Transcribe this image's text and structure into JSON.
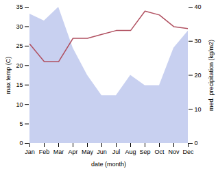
{
  "chart_data": {
    "type": "line",
    "categories": [
      "Jan",
      "Feb",
      "Mar",
      "Apr",
      "May",
      "Jun",
      "Jul",
      "Aug",
      "Sep",
      "Oct",
      "Nov",
      "Dec"
    ],
    "xlabel": "date (month)",
    "ylabel": "max temp (C)",
    "y2label": "med. precipitation (kg/m2)",
    "series": [
      {
        "type": "area",
        "axis": "y2",
        "color": "#c8d0f0",
        "values": [
          38,
          36,
          40,
          28,
          20,
          14,
          14,
          20,
          17,
          17,
          28,
          33
        ]
      },
      {
        "type": "line",
        "color": "#b05060",
        "values": [
          25.5,
          21.0,
          21.0,
          27.0,
          27.0,
          28.0,
          29.0,
          29.0,
          34.0,
          33.0,
          30.0,
          29.5
        ]
      }
    ],
    "ylim": [
      0,
      35
    ],
    "yticks": [
      0,
      5,
      10,
      15,
      20,
      25,
      30,
      35
    ],
    "y2lim": [
      0,
      40
    ],
    "y2ticks": [
      0,
      10,
      20,
      30,
      40
    ]
  }
}
